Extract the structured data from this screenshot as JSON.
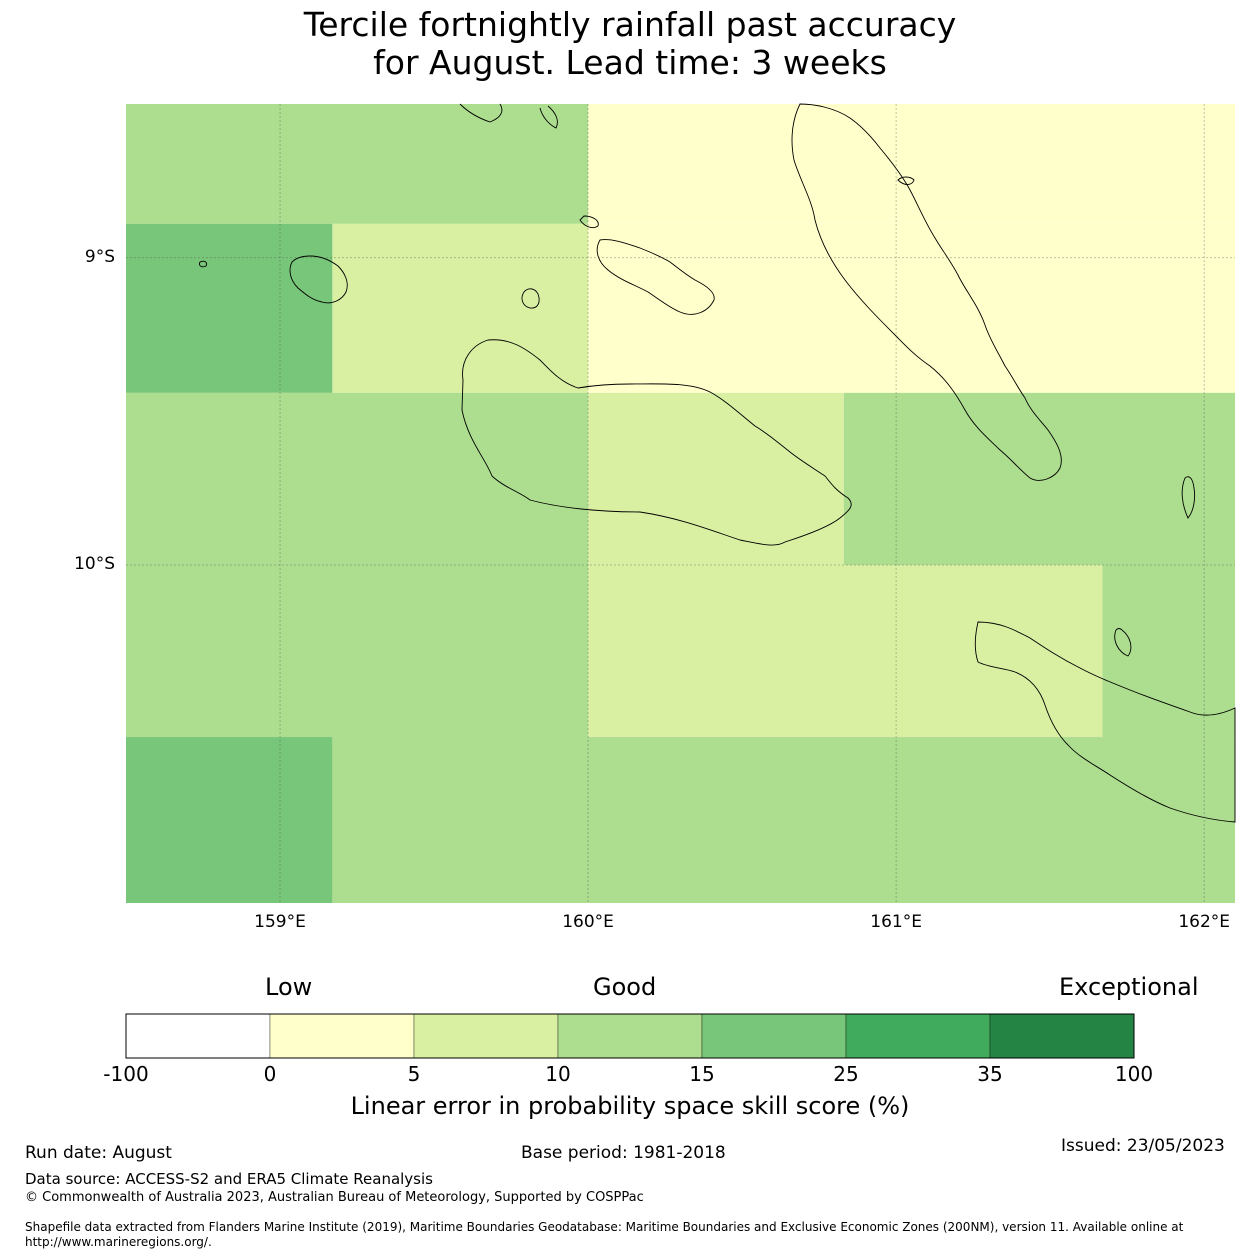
{
  "title": {
    "line1": "Tercile fortnightly rainfall past accuracy",
    "line2": "for August. Lead time: 3 weeks"
  },
  "map": {
    "lon_range": [
      158.5,
      162.1
    ],
    "lat_range": [
      -11.1,
      -8.5
    ],
    "lon_ticks": [
      {
        "value": 159,
        "label": "159°E"
      },
      {
        "value": 160,
        "label": "160°E"
      },
      {
        "value": 161,
        "label": "161°E"
      },
      {
        "value": 162,
        "label": "162°E"
      }
    ],
    "lat_ticks": [
      {
        "value": -9,
        "label": "9°S"
      },
      {
        "value": -10,
        "label": "10°S"
      }
    ],
    "grid": true,
    "coastlines": true
  },
  "chart_data": {
    "type": "heatmap",
    "title": "Tercile fortnightly rainfall past accuracy for August. Lead time: 3 weeks",
    "units": "Linear error in probability space skill score (%)",
    "cells": [
      {
        "lon": [
          158.5,
          160.0
        ],
        "lat": [
          -8.89,
          -8.5
        ],
        "category": "10-15"
      },
      {
        "lon": [
          160.0,
          162.1
        ],
        "lat": [
          -8.89,
          -8.5
        ],
        "category": "0-5"
      },
      {
        "lon": [
          158.5,
          159.17
        ],
        "lat": [
          -9.44,
          -8.89
        ],
        "category": "15-25"
      },
      {
        "lon": [
          159.17,
          160.0
        ],
        "lat": [
          -9.44,
          -8.89
        ],
        "category": "5-10"
      },
      {
        "lon": [
          160.0,
          162.1
        ],
        "lat": [
          -9.44,
          -8.89
        ],
        "category": "0-5"
      },
      {
        "lon": [
          158.5,
          160.0
        ],
        "lat": [
          -10.0,
          -9.44
        ],
        "category": "10-15"
      },
      {
        "lon": [
          160.0,
          160.83
        ],
        "lat": [
          -10.0,
          -9.44
        ],
        "category": "5-10"
      },
      {
        "lon": [
          160.83,
          162.1
        ],
        "lat": [
          -10.0,
          -9.44
        ],
        "category": "10-15"
      },
      {
        "lon": [
          158.5,
          160.0
        ],
        "lat": [
          -10.56,
          -10.0
        ],
        "category": "10-15"
      },
      {
        "lon": [
          160.0,
          161.67
        ],
        "lat": [
          -10.56,
          -10.0
        ],
        "category": "5-10"
      },
      {
        "lon": [
          161.67,
          162.1
        ],
        "lat": [
          -10.56,
          -10.0
        ],
        "category": "10-15"
      },
      {
        "lon": [
          158.5,
          159.17
        ],
        "lat": [
          -11.1,
          -10.56
        ],
        "category": "15-25"
      },
      {
        "lon": [
          159.17,
          162.1
        ],
        "lat": [
          -11.1,
          -10.56
        ],
        "category": "10-15"
      }
    ]
  },
  "colorbar": {
    "words": {
      "low": "Low",
      "good": "Good",
      "exceptional": "Exceptional"
    },
    "ticks": [
      "-100",
      "0",
      "5",
      "10",
      "15",
      "25",
      "35",
      "100"
    ],
    "bins": [
      {
        "range": "-100-0",
        "color": "#ffffff"
      },
      {
        "range": "0-5",
        "color": "#ffffcc"
      },
      {
        "range": "5-10",
        "color": "#d9f0a3"
      },
      {
        "range": "10-15",
        "color": "#addd8e"
      },
      {
        "range": "15-25",
        "color": "#78c679"
      },
      {
        "range": "25-35",
        "color": "#41ab5d"
      },
      {
        "range": "35-100",
        "color": "#238443"
      }
    ],
    "label": "Linear error in probability space skill score (%)"
  },
  "footer": {
    "run_date": "Run date: August",
    "base_period": "Base period: 1981-2018",
    "issued": "Issued: 23/05/2023",
    "data_source": "Data source: ACCESS-S2 and ERA5 Climate Reanalysis",
    "copyright": "© Commonwealth of Australia 2023, Australian Bureau of Meteorology, Supported by COSPPac",
    "shapefile_line1": "Shapefile data extracted from Flanders Marine Institute (2019), Maritime Boundaries Geodatabase: Maritime Boundaries and Exclusive Economic Zones (200NM), version 11. Available online at",
    "shapefile_line2": "http://www.marineregions.org/."
  }
}
